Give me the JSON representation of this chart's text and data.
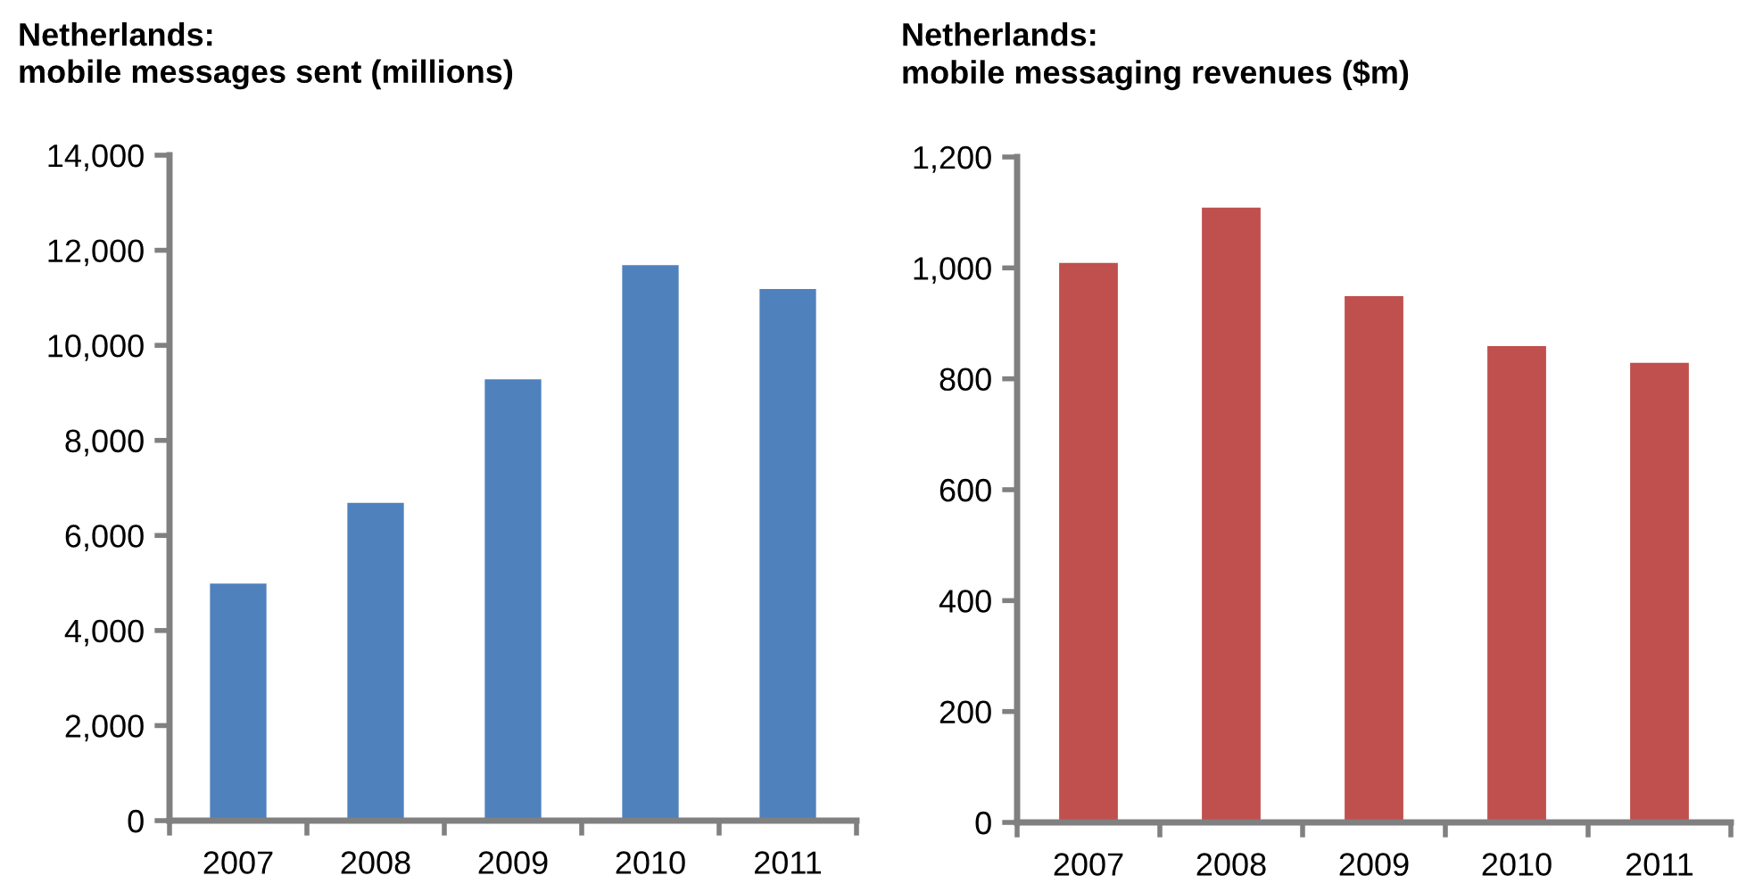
{
  "chart_data": [
    {
      "type": "bar",
      "title": "Netherlands:\nmobile messages sent (millions)",
      "categories": [
        "2007",
        "2008",
        "2009",
        "2010",
        "2011"
      ],
      "series": [
        {
          "color": "#4f81bd",
          "values": [
            5000,
            6700,
            9300,
            11700,
            11200
          ]
        }
      ],
      "ylim": [
        0,
        14000
      ],
      "yticks": [
        {
          "value": 0,
          "label": "0"
        },
        {
          "value": 2000,
          "label": "2,000"
        },
        {
          "value": 4000,
          "label": "4,000"
        },
        {
          "value": 6000,
          "label": "6,000"
        },
        {
          "value": 8000,
          "label": "8,000"
        },
        {
          "value": 10000,
          "label": "10,000"
        },
        {
          "value": 12000,
          "label": "12,000"
        },
        {
          "value": 14000,
          "label": "14,000"
        }
      ]
    },
    {
      "type": "bar",
      "title": "Netherlands:\nmobile messaging revenues ($m)",
      "categories": [
        "2007",
        "2008",
        "2009",
        "2010",
        "2011"
      ],
      "series": [
        {
          "color": "#c0504d",
          "values": [
            1010,
            1110,
            950,
            860,
            830
          ]
        }
      ],
      "ylim": [
        0,
        1200
      ],
      "yticks": [
        0,
        200,
        400,
        600,
        800,
        {
          "value": 1000,
          "label": "1,000"
        },
        {
          "value": 1200,
          "label": "1,200"
        }
      ]
    }
  ]
}
